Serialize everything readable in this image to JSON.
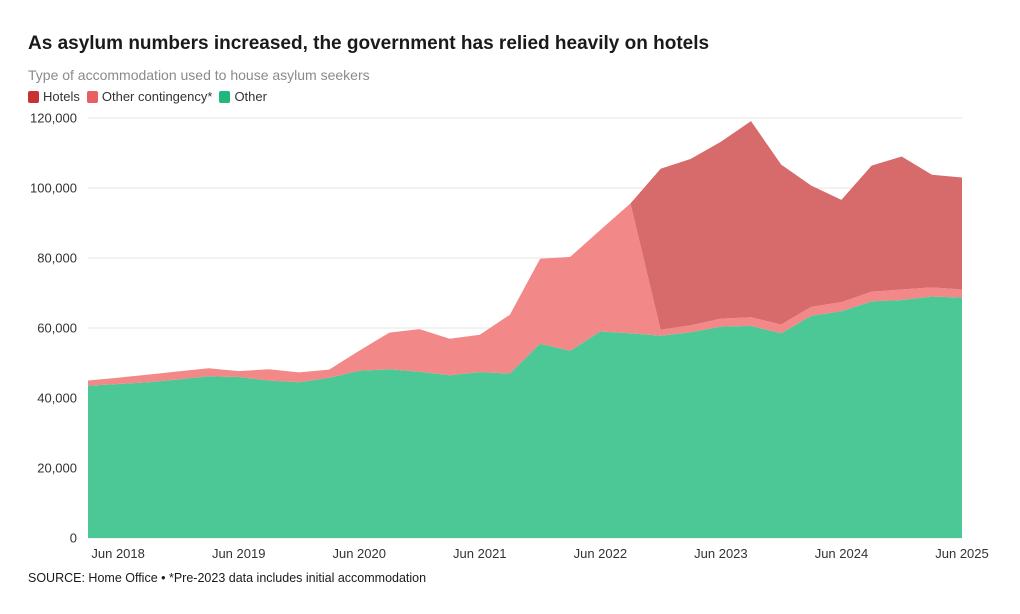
{
  "title": "As asylum numbers increased, the government has relied heavily on hotels",
  "subtitle": "Type of accommodation used to house asylum seekers",
  "source": "SOURCE: Home Office • *Pre-2023 data includes initial accommodation",
  "chart_data": {
    "type": "area",
    "stacked": true,
    "x": [
      "Mar 2018",
      "Jun 2018",
      "Sep 2018",
      "Dec 2018",
      "Mar 2019",
      "Jun 2019",
      "Sep 2019",
      "Dec 2019",
      "Mar 2020",
      "Jun 2020",
      "Sep 2020",
      "Dec 2020",
      "Mar 2021",
      "Jun 2021",
      "Sep 2021",
      "Dec 2021",
      "Mar 2022",
      "Jun 2022",
      "Sep 2022",
      "Dec 2022",
      "Mar 2023",
      "Jun 2023",
      "Sep 2023",
      "Dec 2023",
      "Mar 2024",
      "Jun 2024",
      "Sep 2024",
      "Dec 2024",
      "Mar 2025",
      "Jun 2025"
    ],
    "x_ticks": [
      "Jun 2018",
      "Jun 2019",
      "Jun 2020",
      "Jun 2021",
      "Jun 2022",
      "Jun 2023",
      "Jun 2024",
      "Jun 2025"
    ],
    "series": [
      {
        "name": "Other",
        "color": "#4cc897",
        "values": [
          43500,
          44000,
          44500,
          45300,
          46200,
          46000,
          45000,
          44500,
          45800,
          47800,
          48200,
          47500,
          46500,
          47400,
          47000,
          55500,
          53500,
          59000,
          58500,
          57800,
          58800,
          60400,
          60600,
          58500,
          63500,
          64800,
          67600,
          68000,
          69000,
          68700
        ]
      },
      {
        "name": "Other contingency*",
        "color": "#f38889",
        "values": [
          1500,
          1800,
          2200,
          2300,
          2300,
          1700,
          3200,
          2800,
          2300,
          5700,
          10500,
          12200,
          10400,
          10700,
          16800,
          24300,
          26800,
          29000,
          37100,
          1700,
          2000,
          2300,
          2500,
          2500,
          2600,
          2600,
          2800,
          3000,
          2600,
          2300
        ]
      },
      {
        "name": "Hotels",
        "color": "#d76a6a",
        "values": [
          0,
          0,
          0,
          0,
          0,
          0,
          0,
          0,
          0,
          0,
          0,
          0,
          0,
          0,
          0,
          0,
          0,
          0,
          0,
          46000,
          47500,
          50500,
          56000,
          45700,
          34600,
          29200,
          36000,
          38000,
          32200,
          32000
        ]
      }
    ],
    "legend_colors": {
      "Hotels": "#c93232",
      "Other contingency*": "#e85f63",
      "Other": "#1fb77b"
    },
    "ylim": [
      0,
      120000
    ],
    "y_ticks": [
      "0",
      "20,000",
      "40,000",
      "60,000",
      "80,000",
      "100,000",
      "120,000"
    ],
    "grid": true,
    "legend_position": "top-left"
  }
}
